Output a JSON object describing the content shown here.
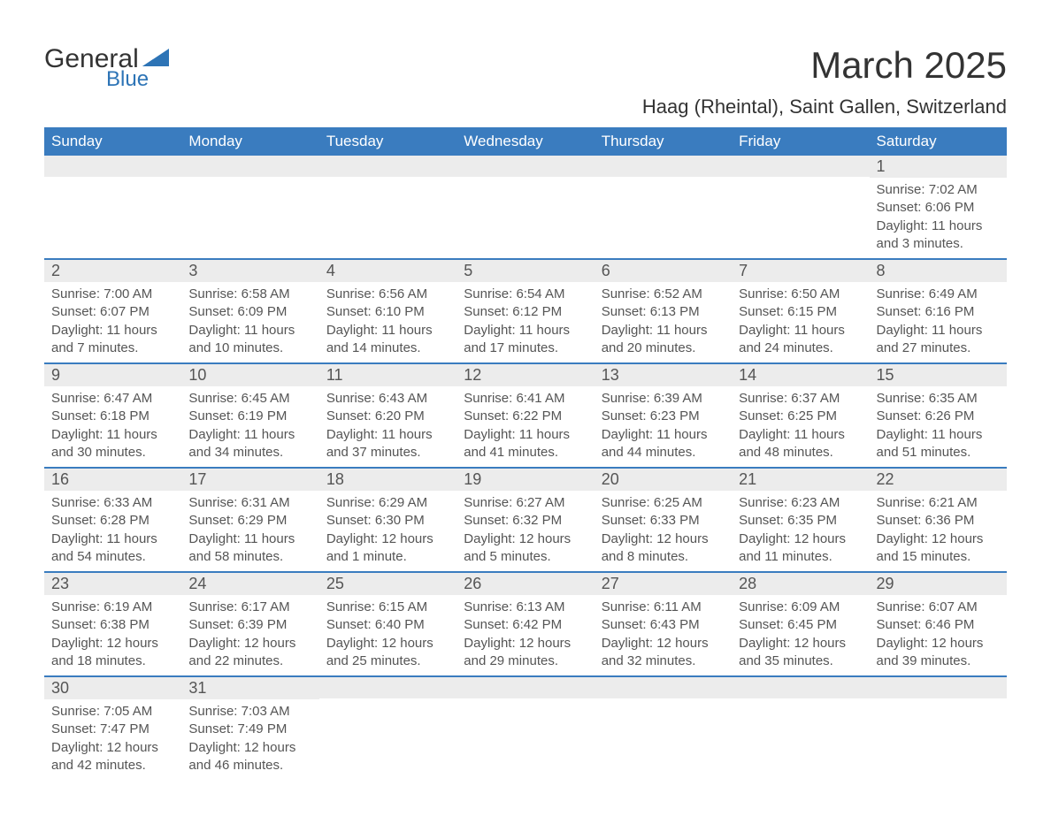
{
  "logo": {
    "general": "General",
    "blue": "Blue"
  },
  "title": "March 2025",
  "location": "Haag (Rheintal), Saint Gallen, Switzerland",
  "colors": {
    "header_bg": "#3a7cbf",
    "header_fg": "#ffffff",
    "daynum_bg": "#ececec",
    "row_border": "#3a7cbf",
    "text": "#555555",
    "logo_blue": "#2d74b6"
  },
  "daysOfWeek": [
    "Sunday",
    "Monday",
    "Tuesday",
    "Wednesday",
    "Thursday",
    "Friday",
    "Saturday"
  ],
  "weeks": [
    [
      null,
      null,
      null,
      null,
      null,
      null,
      {
        "n": "1",
        "sr": "7:02 AM",
        "ss": "6:06 PM",
        "dl": "11 hours and 3 minutes."
      }
    ],
    [
      {
        "n": "2",
        "sr": "7:00 AM",
        "ss": "6:07 PM",
        "dl": "11 hours and 7 minutes."
      },
      {
        "n": "3",
        "sr": "6:58 AM",
        "ss": "6:09 PM",
        "dl": "11 hours and 10 minutes."
      },
      {
        "n": "4",
        "sr": "6:56 AM",
        "ss": "6:10 PM",
        "dl": "11 hours and 14 minutes."
      },
      {
        "n": "5",
        "sr": "6:54 AM",
        "ss": "6:12 PM",
        "dl": "11 hours and 17 minutes."
      },
      {
        "n": "6",
        "sr": "6:52 AM",
        "ss": "6:13 PM",
        "dl": "11 hours and 20 minutes."
      },
      {
        "n": "7",
        "sr": "6:50 AM",
        "ss": "6:15 PM",
        "dl": "11 hours and 24 minutes."
      },
      {
        "n": "8",
        "sr": "6:49 AM",
        "ss": "6:16 PM",
        "dl": "11 hours and 27 minutes."
      }
    ],
    [
      {
        "n": "9",
        "sr": "6:47 AM",
        "ss": "6:18 PM",
        "dl": "11 hours and 30 minutes."
      },
      {
        "n": "10",
        "sr": "6:45 AM",
        "ss": "6:19 PM",
        "dl": "11 hours and 34 minutes."
      },
      {
        "n": "11",
        "sr": "6:43 AM",
        "ss": "6:20 PM",
        "dl": "11 hours and 37 minutes."
      },
      {
        "n": "12",
        "sr": "6:41 AM",
        "ss": "6:22 PM",
        "dl": "11 hours and 41 minutes."
      },
      {
        "n": "13",
        "sr": "6:39 AM",
        "ss": "6:23 PM",
        "dl": "11 hours and 44 minutes."
      },
      {
        "n": "14",
        "sr": "6:37 AM",
        "ss": "6:25 PM",
        "dl": "11 hours and 48 minutes."
      },
      {
        "n": "15",
        "sr": "6:35 AM",
        "ss": "6:26 PM",
        "dl": "11 hours and 51 minutes."
      }
    ],
    [
      {
        "n": "16",
        "sr": "6:33 AM",
        "ss": "6:28 PM",
        "dl": "11 hours and 54 minutes."
      },
      {
        "n": "17",
        "sr": "6:31 AM",
        "ss": "6:29 PM",
        "dl": "11 hours and 58 minutes."
      },
      {
        "n": "18",
        "sr": "6:29 AM",
        "ss": "6:30 PM",
        "dl": "12 hours and 1 minute."
      },
      {
        "n": "19",
        "sr": "6:27 AM",
        "ss": "6:32 PM",
        "dl": "12 hours and 5 minutes."
      },
      {
        "n": "20",
        "sr": "6:25 AM",
        "ss": "6:33 PM",
        "dl": "12 hours and 8 minutes."
      },
      {
        "n": "21",
        "sr": "6:23 AM",
        "ss": "6:35 PM",
        "dl": "12 hours and 11 minutes."
      },
      {
        "n": "22",
        "sr": "6:21 AM",
        "ss": "6:36 PM",
        "dl": "12 hours and 15 minutes."
      }
    ],
    [
      {
        "n": "23",
        "sr": "6:19 AM",
        "ss": "6:38 PM",
        "dl": "12 hours and 18 minutes."
      },
      {
        "n": "24",
        "sr": "6:17 AM",
        "ss": "6:39 PM",
        "dl": "12 hours and 22 minutes."
      },
      {
        "n": "25",
        "sr": "6:15 AM",
        "ss": "6:40 PM",
        "dl": "12 hours and 25 minutes."
      },
      {
        "n": "26",
        "sr": "6:13 AM",
        "ss": "6:42 PM",
        "dl": "12 hours and 29 minutes."
      },
      {
        "n": "27",
        "sr": "6:11 AM",
        "ss": "6:43 PM",
        "dl": "12 hours and 32 minutes."
      },
      {
        "n": "28",
        "sr": "6:09 AM",
        "ss": "6:45 PM",
        "dl": "12 hours and 35 minutes."
      },
      {
        "n": "29",
        "sr": "6:07 AM",
        "ss": "6:46 PM",
        "dl": "12 hours and 39 minutes."
      }
    ],
    [
      {
        "n": "30",
        "sr": "7:05 AM",
        "ss": "7:47 PM",
        "dl": "12 hours and 42 minutes."
      },
      {
        "n": "31",
        "sr": "7:03 AM",
        "ss": "7:49 PM",
        "dl": "12 hours and 46 minutes."
      },
      null,
      null,
      null,
      null,
      null
    ]
  ],
  "labels": {
    "sunrise": "Sunrise:",
    "sunset": "Sunset:",
    "daylight": "Daylight:"
  }
}
